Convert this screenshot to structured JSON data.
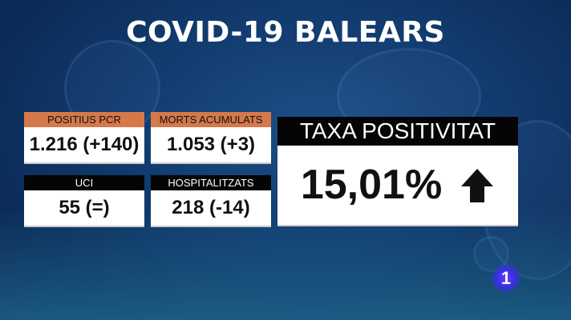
{
  "title": "COVID-19  BALEARS",
  "cards": [
    {
      "label": "POSITIUS PCR",
      "value": "1.216 (+140)",
      "header_color": "#d5784a"
    },
    {
      "label": "MORTS ACUMULATS",
      "value": "1.053 (+3)",
      "header_color": "#d5784a"
    },
    {
      "label": "UCI",
      "value": "55 (=)",
      "header_color": "#050505"
    },
    {
      "label": "HOSPITALITZATS",
      "value": "218 (-14)",
      "header_color": "#050505"
    }
  ],
  "rate": {
    "label": "TAXA POSITIVITAT",
    "value": "15,01%",
    "trend_icon": "arrow-up-icon"
  },
  "channel_logo": "1"
}
